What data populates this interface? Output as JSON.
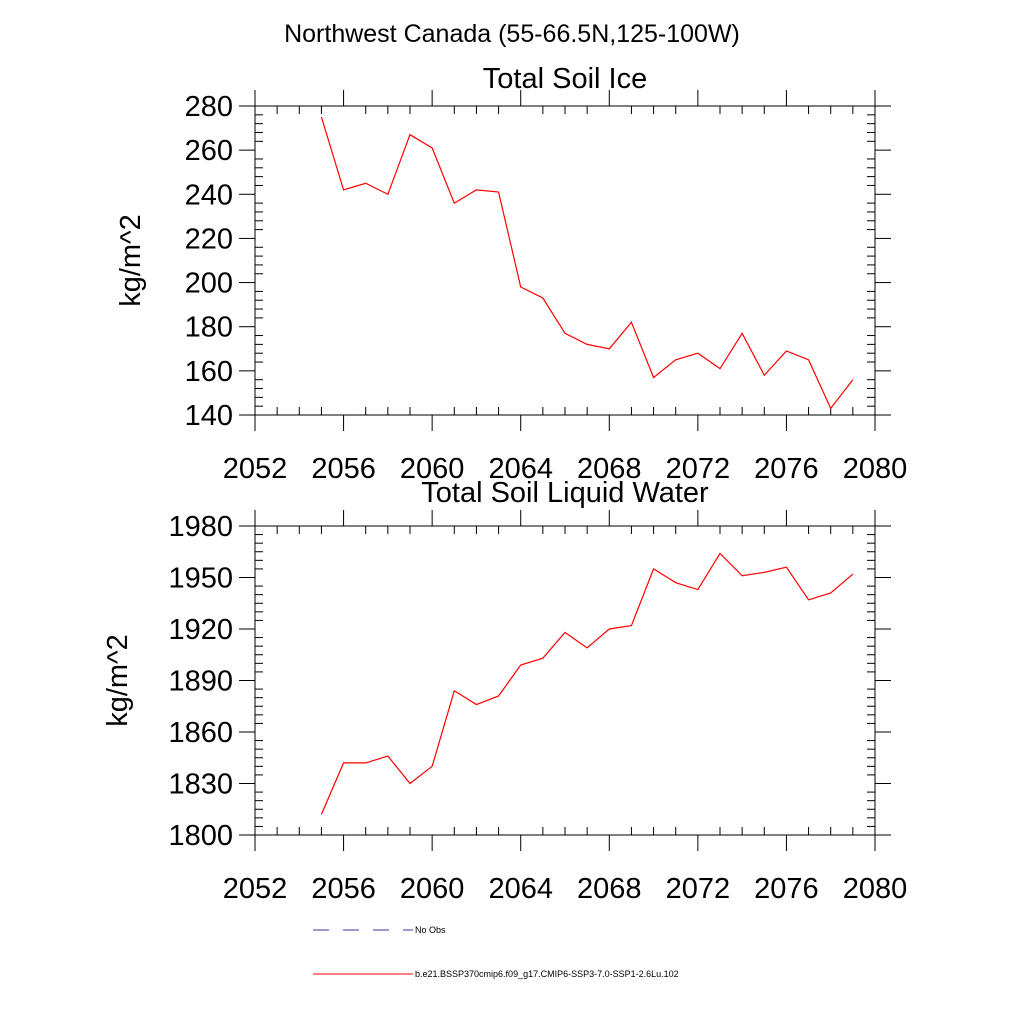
{
  "page_title": "Northwest Canada (55-66.5N,125-100W)",
  "chart_data": [
    {
      "type": "line",
      "title": "Total Soil Ice",
      "xlabel": "",
      "ylabel": "kg/m^2",
      "xlim": [
        2052,
        2080
      ],
      "ylim": [
        140,
        280
      ],
      "xticks": [
        2052,
        2056,
        2060,
        2064,
        2068,
        2072,
        2076,
        2080
      ],
      "yticks": [
        140,
        160,
        180,
        200,
        220,
        240,
        260,
        280
      ],
      "grid": false,
      "series": [
        {
          "name": "b.e21.BSSP370cmip6.f09_g17.CMIP6-SSP3-7.0-SSP1-2.6Lu.102",
          "color": "#ff0000",
          "x": [
            2055,
            2056,
            2057,
            2058,
            2059,
            2060,
            2061,
            2062,
            2063,
            2064,
            2065,
            2066,
            2067,
            2068,
            2069,
            2070,
            2071,
            2072,
            2073,
            2074,
            2075,
            2076,
            2077,
            2078,
            2079
          ],
          "y": [
            275,
            242,
            245,
            240,
            267,
            261,
            236,
            242,
            241,
            198,
            193,
            177,
            172,
            170,
            182,
            157,
            165,
            168,
            161,
            177,
            158,
            169,
            165,
            143,
            156
          ]
        }
      ]
    },
    {
      "type": "line",
      "title": "Total Soil Liquid Water",
      "xlabel": "",
      "ylabel": "kg/m^2",
      "xlim": [
        2052,
        2080
      ],
      "ylim": [
        1800,
        1980
      ],
      "xticks": [
        2052,
        2056,
        2060,
        2064,
        2068,
        2072,
        2076,
        2080
      ],
      "yticks": [
        1800,
        1830,
        1860,
        1890,
        1920,
        1950,
        1980
      ],
      "grid": false,
      "series": [
        {
          "name": "b.e21.BSSP370cmip6.f09_g17.CMIP6-SSP3-7.0-SSP1-2.6Lu.102",
          "color": "#ff0000",
          "x": [
            2055,
            2056,
            2057,
            2058,
            2059,
            2060,
            2061,
            2062,
            2063,
            2064,
            2065,
            2066,
            2067,
            2068,
            2069,
            2070,
            2071,
            2072,
            2073,
            2074,
            2075,
            2076,
            2077,
            2078,
            2079
          ],
          "y": [
            1812,
            1842,
            1842,
            1846,
            1830,
            1840,
            1884,
            1876,
            1881,
            1899,
            1903,
            1918,
            1909,
            1920,
            1922,
            1955,
            1947,
            1943,
            1964,
            1951,
            1953,
            1956,
            1937,
            1941,
            1952
          ]
        }
      ]
    }
  ],
  "legend": {
    "placement": "bottom",
    "items": [
      {
        "label": "No Obs",
        "color": "#3a3aa8",
        "style": "dashed"
      },
      {
        "label": "b.e21.BSSP370cmip6.f09_g17.CMIP6-SSP3-7.0-SSP1-2.6Lu.102",
        "color": "#ff0000",
        "style": "solid"
      }
    ]
  }
}
